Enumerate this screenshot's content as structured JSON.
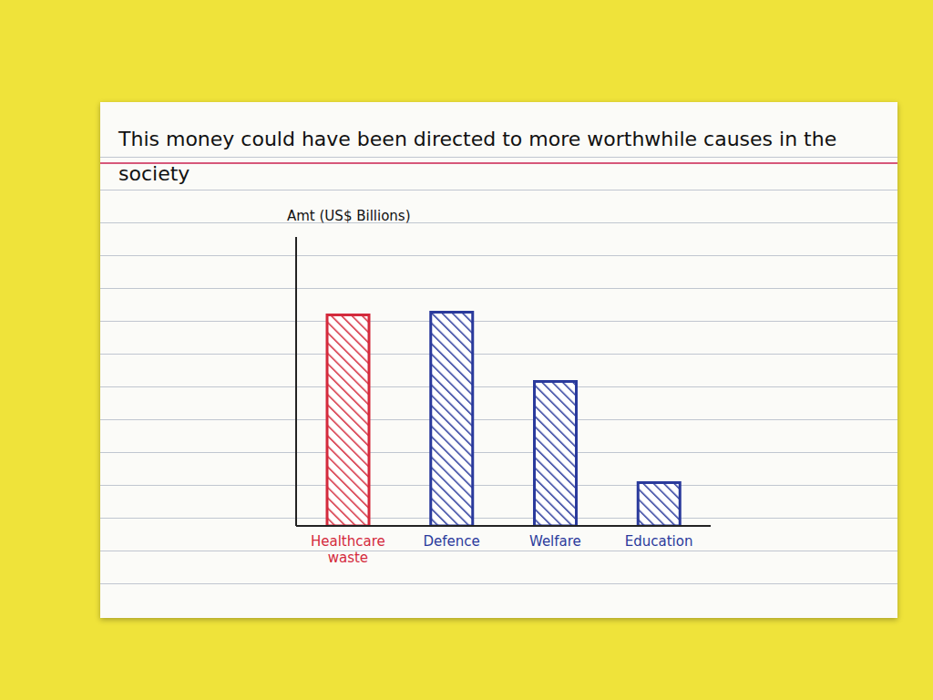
{
  "chart_data": {
    "type": "bar",
    "title": "This money could have been directed to more worthwhile causes in the society",
    "y_label": "Amt (US$ Billions)",
    "categories": [
      "Healthcare waste",
      "Defence",
      "Welfare",
      "Education"
    ],
    "values": [
      730,
      740,
      500,
      150
    ],
    "colors": [
      "#d42a3c",
      "#2a3a9c",
      "#2a3a9c",
      "#2a3a9c"
    ],
    "ylim": [
      0,
      1000
    ],
    "tick_labels": "x",
    "grid": false
  }
}
